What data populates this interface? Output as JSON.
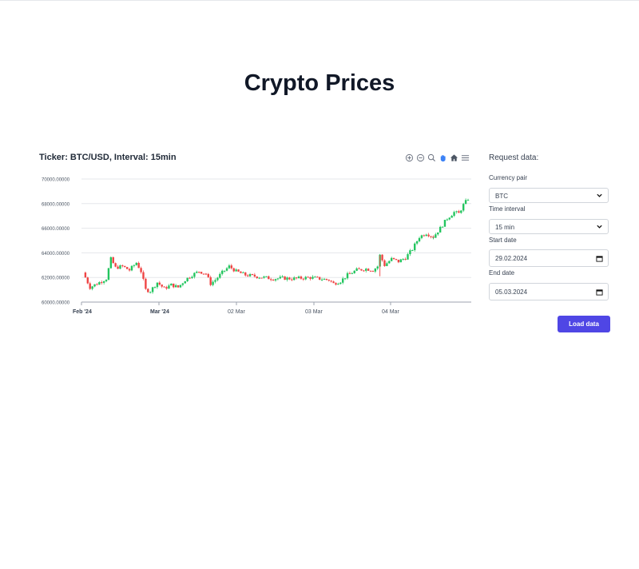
{
  "page": {
    "title": "Crypto Prices"
  },
  "chart": {
    "title": "Ticker: BTC/USD, Interval: 15min",
    "toolbar": [
      "zoom-in-icon",
      "zoom-out-icon",
      "zoom-select-icon",
      "pan-hand-icon",
      "reset-home-icon",
      "menu-icon"
    ]
  },
  "chart_data": {
    "type": "candlestick",
    "title": "Ticker: BTC/USD, Interval: 15min",
    "ylim": [
      60000,
      70000
    ],
    "yticks": [
      "70000.00000",
      "68000.00000",
      "66000.00000",
      "64000.00000",
      "62000.00000",
      "60000.00000"
    ],
    "xticks": [
      "Feb '24",
      "Mar '24",
      "02 Mar",
      "03 Mar",
      "04 Mar"
    ],
    "colors": {
      "up": "#22c55e",
      "down": "#ef4444"
    },
    "close_path": [
      [
        0,
        62400
      ],
      [
        3,
        61200
      ],
      [
        6,
        61500
      ],
      [
        10,
        61900
      ],
      [
        12,
        63500
      ],
      [
        14,
        62800
      ],
      [
        17,
        62900
      ],
      [
        20,
        62600
      ],
      [
        23,
        63200
      ],
      [
        25,
        62500
      ],
      [
        27,
        61000
      ],
      [
        29,
        60900
      ],
      [
        32,
        61600
      ],
      [
        35,
        61100
      ],
      [
        38,
        61400
      ],
      [
        41,
        61200
      ],
      [
        44,
        61800
      ],
      [
        47,
        62200
      ],
      [
        50,
        62500
      ],
      [
        53,
        62300
      ],
      [
        55,
        61500
      ],
      [
        57,
        61800
      ],
      [
        60,
        62400
      ],
      [
        63,
        62900
      ],
      [
        66,
        62500
      ],
      [
        70,
        62200
      ],
      [
        74,
        62100
      ],
      [
        78,
        62000
      ],
      [
        82,
        61900
      ],
      [
        86,
        61950
      ],
      [
        90,
        61900
      ],
      [
        94,
        61950
      ],
      [
        98,
        62000
      ],
      [
        102,
        61900
      ],
      [
        106,
        61800
      ],
      [
        108,
        61500
      ],
      [
        111,
        61700
      ],
      [
        114,
        62200
      ],
      [
        118,
        62600
      ],
      [
        122,
        62700
      ],
      [
        125,
        62600
      ],
      [
        127,
        62900
      ],
      [
        128,
        63800
      ],
      [
        130,
        63000
      ],
      [
        133,
        63500
      ],
      [
        136,
        63300
      ],
      [
        139,
        63600
      ],
      [
        142,
        64300
      ],
      [
        145,
        65300
      ],
      [
        148,
        65600
      ],
      [
        151,
        65300
      ],
      [
        154,
        66000
      ],
      [
        157,
        66800
      ],
      [
        160,
        67300
      ],
      [
        162,
        67200
      ],
      [
        164,
        67900
      ],
      [
        166,
        68400
      ]
    ],
    "spikes": [
      [
        128,
        62100,
        "down"
      ],
      [
        151,
        65100,
        "up"
      ]
    ]
  },
  "panel": {
    "title": "Request data:",
    "currency_label": "Currency pair",
    "currency_value": "BTC",
    "interval_label": "Time interval",
    "interval_value": "15 min",
    "start_label": "Start date",
    "start_value": "29.02.2024",
    "end_label": "End date",
    "end_value": "05.03.2024",
    "load_label": "Load data"
  }
}
